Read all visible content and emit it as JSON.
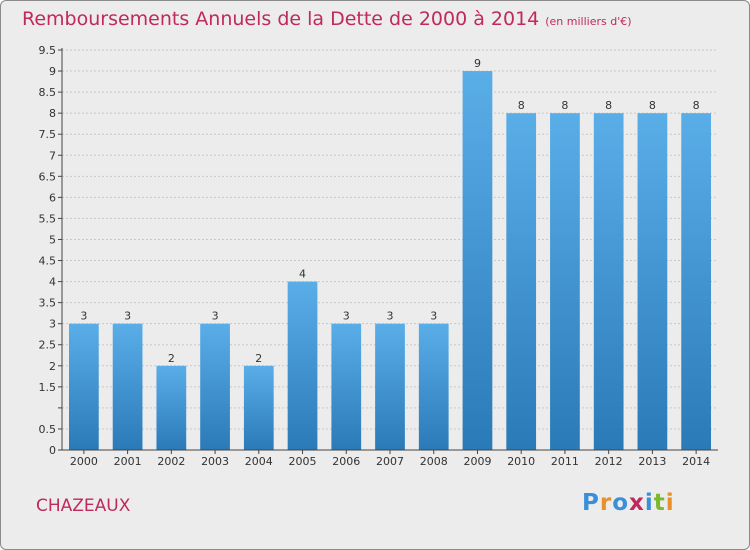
{
  "title": "Remboursements Annuels de la Dette de 2000 à 2014",
  "subtitle": "(en milliers d'€)",
  "commune": "CHAZEAUX",
  "logo": {
    "letters": [
      "P",
      "r",
      "o",
      "x",
      "i",
      "t",
      "i"
    ],
    "colors": [
      "#3a8fd8",
      "#e8902a",
      "#3a8fd8",
      "#c0285e",
      "#3a8fd8",
      "#7ab82e",
      "#e8902a"
    ]
  },
  "colors": {
    "title": "#c0285e",
    "bar_top": "#5aaee8",
    "bar_bottom": "#2a7ab8",
    "grid": "#c8c8c8",
    "axis": "#444444"
  },
  "chart_data": {
    "type": "bar",
    "title": "Remboursements Annuels de la Dette de 2000 à 2014",
    "subtitle": "(en milliers d'€)",
    "categories": [
      "2000",
      "2001",
      "2002",
      "2003",
      "2004",
      "2005",
      "2006",
      "2007",
      "2008",
      "2009",
      "2010",
      "2011",
      "2012",
      "2013",
      "2014"
    ],
    "values": [
      3,
      3,
      2,
      3,
      2,
      4,
      3,
      3,
      3,
      9,
      8,
      8,
      8,
      8,
      8
    ],
    "data_labels": [
      "3",
      "3",
      "2",
      "3",
      "2",
      "4",
      "3",
      "3",
      "3",
      "9",
      "8",
      "8",
      "8",
      "8",
      "8"
    ],
    "y_ticks": [
      0,
      0.5,
      1,
      1.5,
      2,
      2.5,
      3,
      3.5,
      4,
      4.5,
      5,
      5.5,
      6,
      6.5,
      7,
      7.5,
      8,
      8.5,
      9,
      9.5
    ],
    "y_tick_labels": [
      "0",
      "0.5",
      "",
      "1.5",
      "2",
      "2.5",
      "3",
      "3.5",
      "4",
      "4.5",
      "5",
      "5.5",
      "6",
      "6.5",
      "7",
      "7.5",
      "8",
      "8.5",
      "9",
      "9.5"
    ],
    "ylim": [
      0,
      9.5
    ],
    "grid": true,
    "xlabel": "",
    "ylabel": ""
  }
}
